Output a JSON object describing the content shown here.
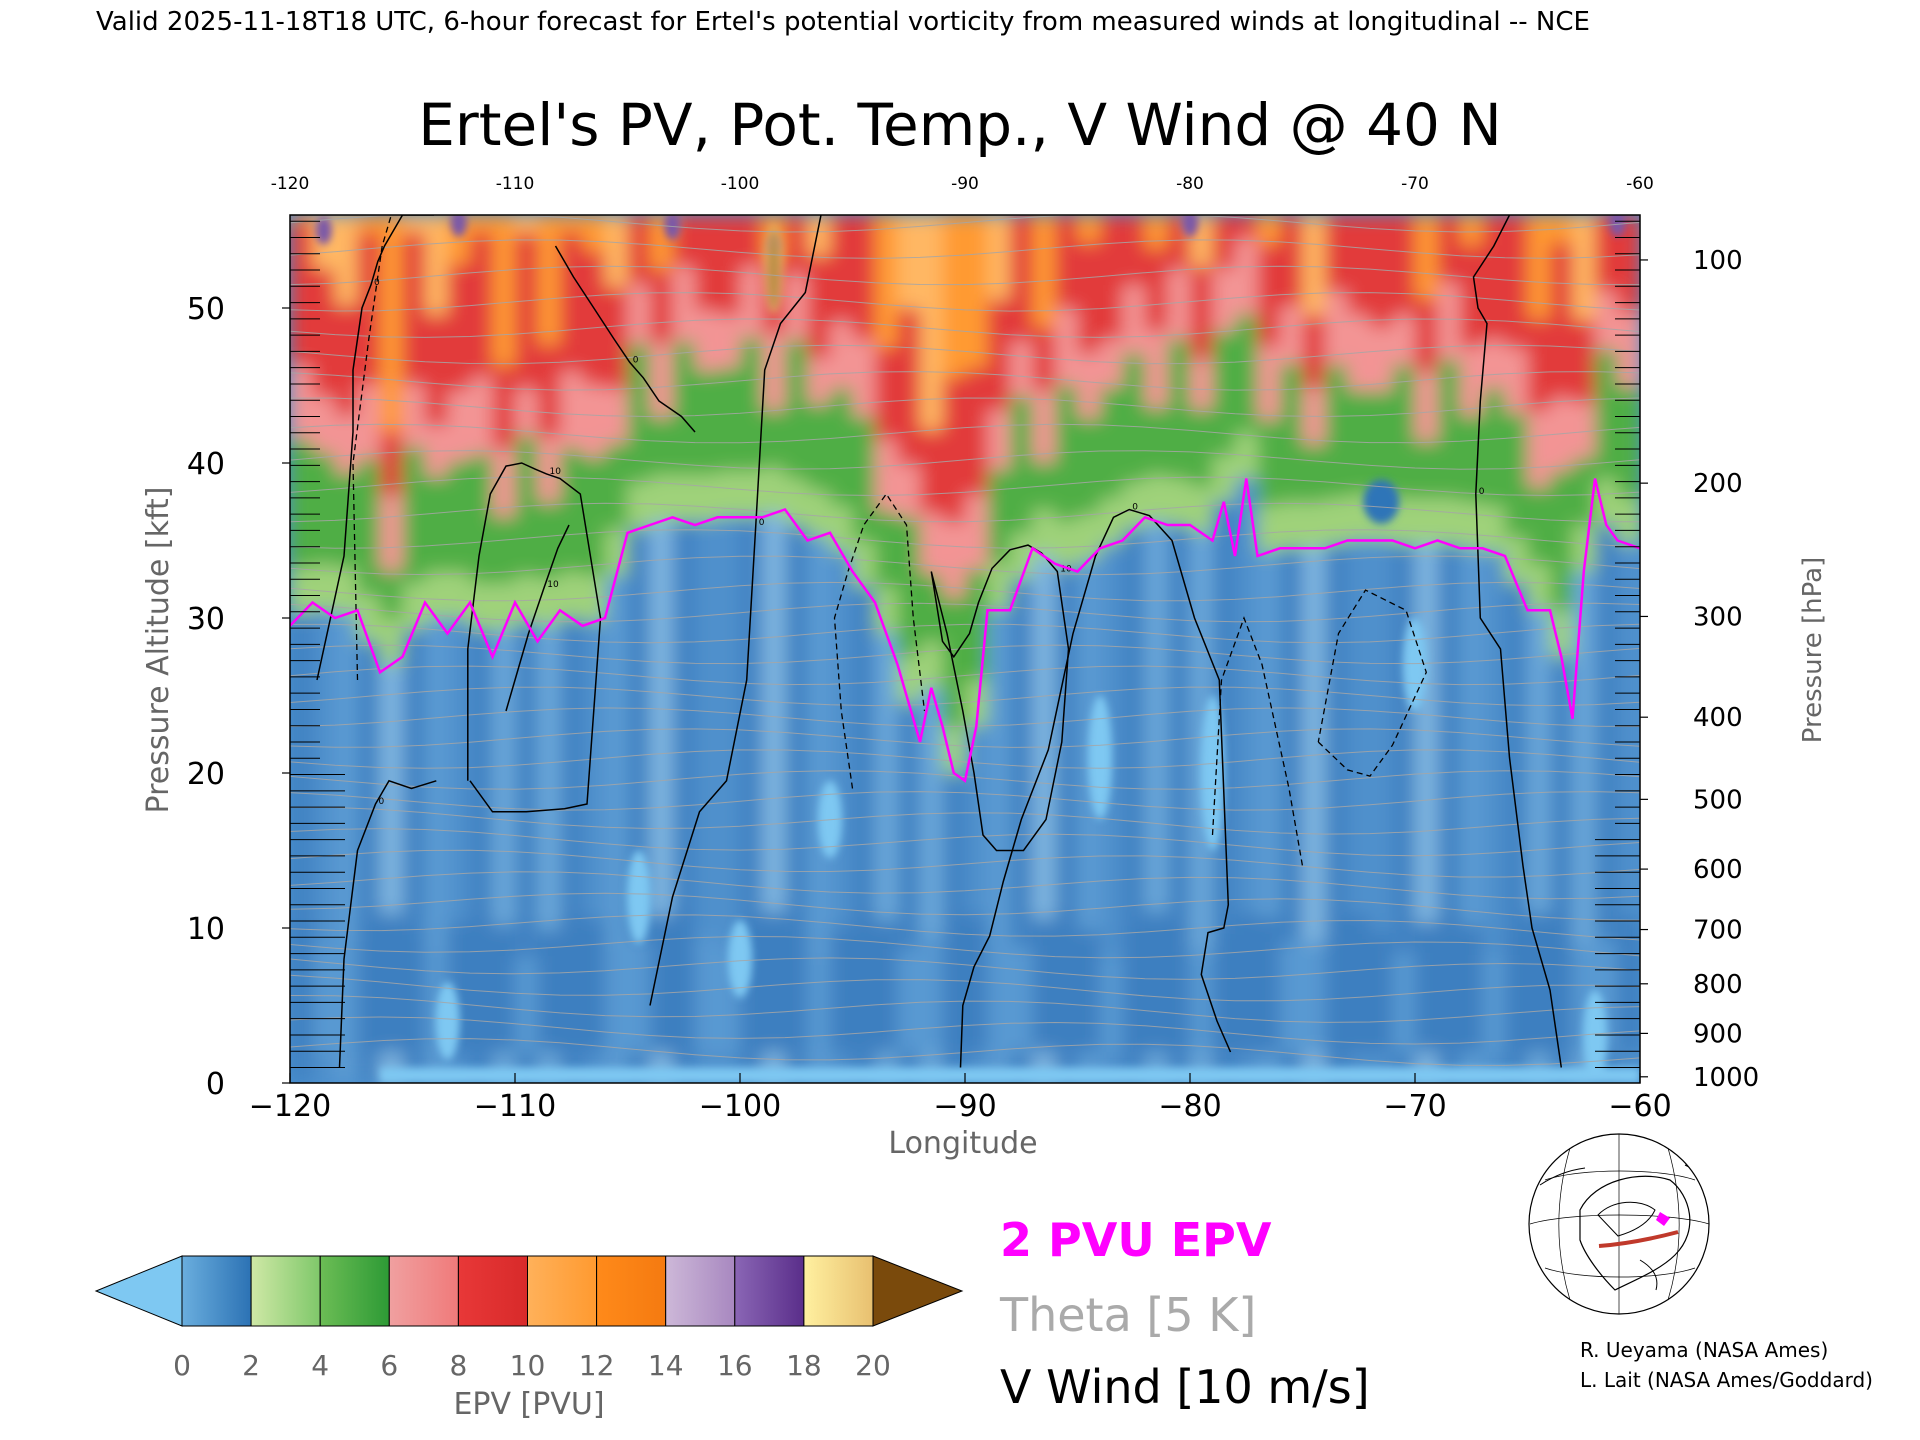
{
  "header": "Valid 2025-11-18T18 UTC, 6-hour forecast for Ertel's potential vorticity from measured winds at longitudinal -- NCE",
  "chart_data": {
    "type": "heatmap",
    "title": "Ertel's PV, Pot. Temp., V Wind @ 40 N",
    "xlabel": "Longitude",
    "ylabel": "Pressure Altitude [kft]",
    "ylabel_right": "Pressure [hPa]",
    "xlim": [
      -120,
      -60
    ],
    "ylim": [
      0,
      56
    ],
    "x_ticks": [
      -120,
      -110,
      -100,
      -90,
      -80,
      -70,
      -60
    ],
    "x_tick_labels": [
      "−120",
      "−110",
      "−100",
      "−90",
      "−80",
      "−70",
      "−60"
    ],
    "top_tick_labels": [
      "-120",
      "-110",
      "-100",
      "-90",
      "-80",
      "-70",
      "-60"
    ],
    "y_ticks": [
      0,
      10,
      20,
      30,
      40,
      50
    ],
    "pressure_ticks": [
      {
        "label": "100",
        "kft": 53.1
      },
      {
        "label": "200",
        "kft": 38.7
      },
      {
        "label": "300",
        "kft": 30.1
      },
      {
        "label": "400",
        "kft": 23.6
      },
      {
        "label": "500",
        "kft": 18.3
      },
      {
        "label": "600",
        "kft": 13.8
      },
      {
        "label": "700",
        "kft": 9.9
      },
      {
        "label": "800",
        "kft": 6.4
      },
      {
        "label": "900",
        "kft": 3.2
      },
      {
        "label": "1000",
        "kft": 0.4
      }
    ],
    "colorbar": {
      "label": "EPV [PVU]",
      "ticks": [
        "0",
        "2",
        "4",
        "6",
        "8",
        "10",
        "12",
        "14",
        "16",
        "18",
        "20"
      ],
      "under_color": "#7ec8f2",
      "over_color": "#7a4a0c",
      "bins": [
        [
          "#6aaede",
          "#2c72b4"
        ],
        [
          "#cfe8a6",
          "#7fc86a"
        ],
        [
          "#6cbd55",
          "#2d9a35"
        ],
        [
          "#f0a0a0",
          "#f07a7a"
        ],
        [
          "#e83838",
          "#d82a2a"
        ],
        [
          "#ffb15a",
          "#ff9a30"
        ],
        [
          "#ff8a1a",
          "#f57a10"
        ],
        [
          "#cdb8d8",
          "#a888c0"
        ],
        [
          "#8a66b5",
          "#5a2e8a"
        ],
        [
          "#fff0a0",
          "#e8c070"
        ],
        [
          "#c89a3a",
          "#8a5a14"
        ]
      ]
    },
    "series": [
      {
        "name": "2 PVU EPV",
        "color": "#ff00ff"
      },
      {
        "name": "Theta [5 K]",
        "color": "#aaaaaa"
      },
      {
        "name": "V Wind [10 m/s]",
        "color": "#000000"
      }
    ],
    "tropopause_2pvu": {
      "x": [
        -120,
        -119,
        -118,
        -117,
        -116,
        -115,
        -114,
        -113,
        -112,
        -111,
        -110,
        -109,
        -108,
        -107,
        -106,
        -105,
        -104,
        -103,
        -102,
        -101,
        -100,
        -99,
        -98,
        -97,
        -96,
        -95,
        -94,
        -93,
        -92,
        -91.5,
        -91,
        -90.5,
        -90,
        -89.5,
        -89,
        -88,
        -87,
        -86,
        -85,
        -84,
        -83,
        -82,
        -81,
        -80,
        -79,
        -78.5,
        -78,
        -77.5,
        -77,
        -76,
        -75,
        -74,
        -73,
        -72,
        -71,
        -70,
        -69,
        -68,
        -67,
        -66,
        -65,
        -64,
        -63.5,
        -63,
        -62.5,
        -62,
        -61.5,
        -61,
        -60
      ],
      "y": [
        29.5,
        31,
        30,
        30.5,
        26.5,
        27.5,
        31,
        29,
        31,
        27.5,
        31,
        28.5,
        30.5,
        29.5,
        30,
        35.5,
        36,
        36.5,
        36,
        36.5,
        36.5,
        36.5,
        37,
        35,
        35.5,
        33,
        31,
        27,
        22,
        25.5,
        23,
        20,
        19.5,
        23,
        30.5,
        30.5,
        34.5,
        33.5,
        33,
        34.5,
        35,
        36.5,
        36,
        36,
        35,
        37.5,
        34,
        39,
        34,
        34.5,
        34.5,
        34.5,
        35,
        35,
        35,
        34.5,
        35,
        34.5,
        34.5,
        34,
        30.5,
        30.5,
        27.5,
        23.5,
        33,
        39,
        36,
        35,
        34.5
      ]
    },
    "v_wind_contours": [
      {
        "label": "0",
        "x": [
          -118.8,
          -118.2,
          -117.6,
          -117.4,
          -117.2,
          -117.2,
          -116.8,
          -116.4,
          -116.1,
          -115.8,
          -115.4,
          -115.0,
          -114.4,
          -113.6
        ],
        "y": [
          26,
          30,
          34,
          38,
          42,
          46,
          50,
          51.5,
          53,
          54,
          55,
          56,
          56,
          56
        ]
      },
      {
        "label": "0",
        "x": [
          -117.8,
          -117.6,
          -117.0,
          -116.2,
          -115.6,
          -114.6,
          -113.5
        ],
        "y": [
          1,
          8,
          15,
          18,
          19.5,
          19,
          19.5
        ]
      },
      {
        "label": "10",
        "x": [
          -112,
          -111,
          -109.5,
          -107.8,
          -106.8,
          -106.2,
          -107.1,
          -108,
          -108.6,
          -109.1,
          -109.7,
          -110.4,
          -111.1,
          -111.6,
          -112.1,
          -112.1
        ],
        "y": [
          19.5,
          17.5,
          17.5,
          17.7,
          18,
          30,
          38,
          39,
          39.3,
          39.6,
          40,
          39.8,
          38,
          34,
          28,
          19.5
        ]
      },
      {
        "label": "10",
        "x": [
          -110.4,
          -110,
          -109.4,
          -108.7,
          -108.1,
          -107.6
        ],
        "y": [
          24,
          26,
          29,
          32,
          34.5,
          36
        ]
      },
      {
        "label": "0",
        "x": [
          -104,
          -103,
          -101.8,
          -100.6,
          -99.7,
          -99.3,
          -98.9,
          -98.2,
          -97.1,
          -96.4
        ],
        "y": [
          5,
          12,
          17.5,
          19.5,
          26,
          36,
          46,
          49,
          51,
          56
        ]
      },
      {
        "label": "0",
        "x": [
          -108.2,
          -107.4,
          -106.5,
          -105.6,
          -104.9,
          -104.3,
          -103.6,
          -102.6,
          -102
        ],
        "y": [
          54,
          52,
          50,
          48,
          46.5,
          45.5,
          44,
          43,
          42
        ]
      },
      {
        "label": "0",
        "x": [
          -90.2,
          -90.1,
          -89.6,
          -88.9,
          -88.3,
          -87.5,
          -86.3,
          -85.2,
          -84.2,
          -83.4,
          -82.7,
          -81.8,
          -80.8,
          -79.8,
          -78.7,
          -78.3,
          -78.5,
          -79.2,
          -79.5,
          -78.8,
          -78.2
        ],
        "y": [
          1,
          5,
          7.5,
          9.5,
          13,
          17,
          21.5,
          29,
          34,
          36.5,
          37,
          36.6,
          35,
          30,
          26,
          11.5,
          10,
          9.7,
          7,
          4,
          2
        ]
      },
      {
        "label": "10",
        "x": [
          -91.5,
          -90.8,
          -90.1,
          -89.6,
          -89.2,
          -88.6,
          -87.4,
          -86.4,
          -85.7,
          -85.4,
          -85.9,
          -86.6,
          -87.2,
          -88,
          -88.8,
          -89.4,
          -89.8,
          -90.5,
          -91.0,
          -91.5
        ],
        "y": [
          33,
          29,
          24,
          20,
          16,
          15,
          15,
          17,
          22,
          28,
          33,
          34.2,
          34.7,
          34.4,
          33.2,
          31,
          29,
          27.5,
          28.5,
          33
        ]
      },
      {
        "label": "0",
        "x": [
          -63.5,
          -64,
          -64.8,
          -65.2,
          -65.8,
          -66.2,
          -67.1,
          -67.3,
          -67.1,
          -66.8,
          -67.2,
          -67.4,
          -66.5,
          -65.8
        ],
        "y": [
          1,
          6,
          10,
          14,
          21,
          28,
          30,
          38,
          44,
          49,
          50,
          52,
          54,
          56
        ]
      }
    ],
    "theta_levels": [
      "280",
      "290",
      "300",
      "310",
      "320",
      "330",
      "340",
      "350",
      "360",
      "370",
      "380",
      "390",
      "400",
      "410",
      "420",
      "430",
      "440"
    ]
  },
  "legend": {
    "epv": "2 PVU EPV",
    "theta": "Theta [5 K]",
    "wind": "V Wind [10 m/s]"
  },
  "credits": [
    "R. Ueyama (NASA Ames)",
    "L. Lait (NASA Ames/Goddard)"
  ],
  "colors": {
    "epv_line": "#ff00ff",
    "theta_line": "#aaaaaa",
    "wind_line": "#000000",
    "track": "#c0392b"
  },
  "icons": {
    "locator": "globe-map-icon"
  }
}
